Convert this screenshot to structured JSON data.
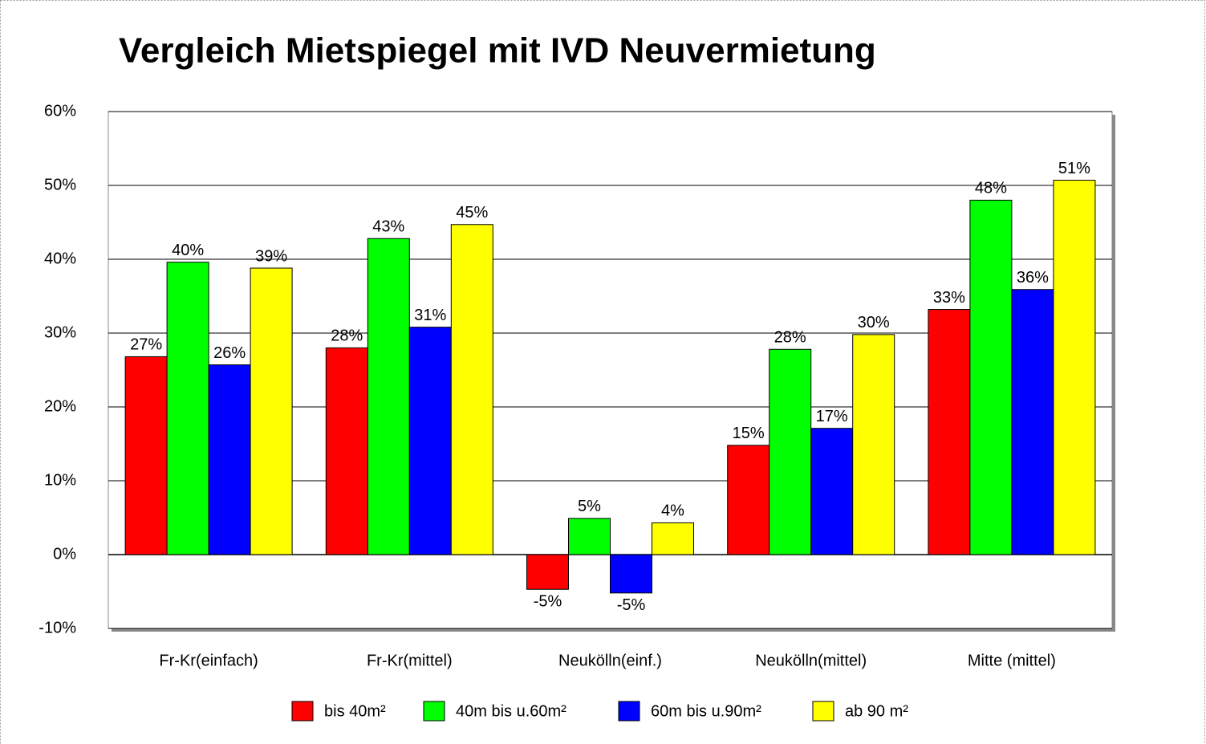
{
  "chart_data": {
    "type": "bar",
    "title": "Vergleich Mietspiegel mit IVD Neuvermietung",
    "categories": [
      "Fr-Kr(einfach)",
      "Fr-Kr(mittel)",
      "Neukölln(einf.)",
      "Neukölln(mittel)",
      "Mitte (mittel)"
    ],
    "series": [
      {
        "name": "bis 40m²",
        "color": "#ff0000",
        "values": [
          26.8,
          28.0,
          -4.7,
          14.8,
          33.2
        ],
        "value_labels": [
          "27%",
          "28%",
          "-5%",
          "15%",
          "33%"
        ]
      },
      {
        "name": "40m bis u.60m²",
        "color": "#00ff00",
        "values": [
          39.6,
          42.8,
          4.9,
          27.8,
          48.0
        ],
        "value_labels": [
          "40%",
          "43%",
          "5%",
          "28%",
          "48%"
        ]
      },
      {
        "name": "60m bis u.90m²",
        "color": "#0000ff",
        "values": [
          25.7,
          30.8,
          -5.2,
          17.1,
          35.9
        ],
        "value_labels": [
          "26%",
          "31%",
          "-5%",
          "17%",
          "36%"
        ]
      },
      {
        "name": "ab 90 m²",
        "color": "#ffff00",
        "values": [
          38.8,
          44.7,
          4.3,
          29.8,
          50.7
        ],
        "value_labels": [
          "39%",
          "45%",
          "4%",
          "30%",
          "51%"
        ]
      }
    ],
    "ylim": [
      -10,
      60
    ],
    "yticks": [
      {
        "value": -10,
        "label": "-10%"
      },
      {
        "value": 0,
        "label": "0%"
      },
      {
        "value": 10,
        "label": "10%"
      },
      {
        "value": 20,
        "label": "20%"
      },
      {
        "value": 30,
        "label": "30%"
      },
      {
        "value": 40,
        "label": "40%"
      },
      {
        "value": 50,
        "label": "50%"
      },
      {
        "value": 60,
        "label": "60%"
      }
    ],
    "grid": true,
    "legend": "bottom"
  }
}
